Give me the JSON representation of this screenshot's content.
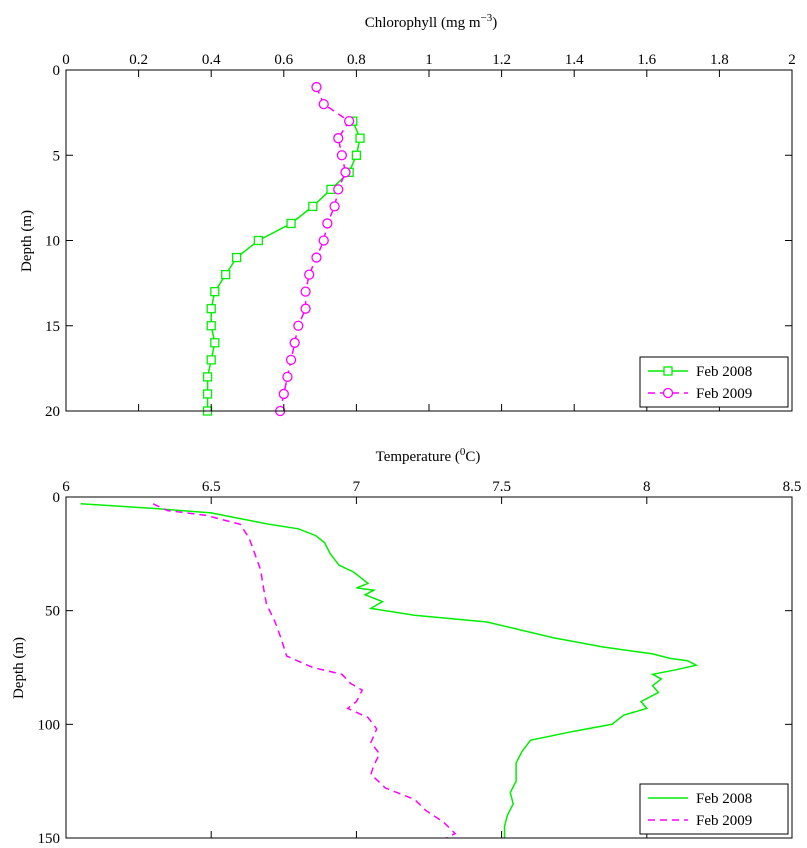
{
  "chart_data": [
    {
      "type": "line",
      "xlabel": "Chlorophyll (mg m",
      "xlabel_sup": "−3",
      "xlabel_end": ")",
      "ylabel": "Depth (m)",
      "xlim": [
        0,
        2
      ],
      "ylim": [
        0,
        20
      ],
      "x_ticks": [
        0,
        0.2,
        0.4,
        0.6,
        0.8,
        1,
        1.2,
        1.4,
        1.6,
        1.8,
        2
      ],
      "x_tick_labels": [
        "0",
        "0.2",
        "0.4",
        "0.6",
        "0.8",
        "1",
        "1.2",
        "1.4",
        "1.6",
        "1.8",
        "2"
      ],
      "y_ticks": [
        0,
        5,
        10,
        15,
        20
      ],
      "y_tick_labels": [
        "0",
        "5",
        "10",
        "15",
        "20"
      ],
      "y_reversed": true,
      "x_axis_position": "top",
      "grid": false,
      "legend_position": "bottom-right",
      "series": [
        {
          "name": "Feb 2008",
          "color": "#00ee00",
          "dash": "solid",
          "marker": "square",
          "points": [
            [
              0.79,
              3
            ],
            [
              0.81,
              4
            ],
            [
              0.8,
              5
            ],
            [
              0.78,
              6
            ],
            [
              0.73,
              7
            ],
            [
              0.68,
              8
            ],
            [
              0.62,
              9
            ],
            [
              0.53,
              10
            ],
            [
              0.47,
              11
            ],
            [
              0.44,
              12
            ],
            [
              0.41,
              13
            ],
            [
              0.4,
              14
            ],
            [
              0.4,
              15
            ],
            [
              0.41,
              16
            ],
            [
              0.4,
              17
            ],
            [
              0.39,
              18
            ],
            [
              0.39,
              19
            ],
            [
              0.39,
              20
            ]
          ]
        },
        {
          "name": "Feb 2009",
          "color": "#ff00ff",
          "dash": "dashed",
          "marker": "circle",
          "points": [
            [
              0.69,
              1
            ],
            [
              0.71,
              2
            ],
            [
              0.78,
              3
            ],
            [
              0.75,
              4
            ],
            [
              0.76,
              5
            ],
            [
              0.77,
              6
            ],
            [
              0.75,
              7
            ],
            [
              0.74,
              8
            ],
            [
              0.72,
              9
            ],
            [
              0.71,
              10
            ],
            [
              0.69,
              11
            ],
            [
              0.67,
              12
            ],
            [
              0.66,
              13
            ],
            [
              0.66,
              14
            ],
            [
              0.64,
              15
            ],
            [
              0.63,
              16
            ],
            [
              0.62,
              17
            ],
            [
              0.61,
              18
            ],
            [
              0.6,
              19
            ],
            [
              0.59,
              20
            ]
          ]
        }
      ]
    },
    {
      "type": "line",
      "xlabel": "Temperature (",
      "xlabel_sup": "0",
      "xlabel_end": "C)",
      "ylabel": "Depth (m)",
      "xlim": [
        6,
        8.5
      ],
      "ylim": [
        0,
        150
      ],
      "x_ticks": [
        6,
        6.5,
        7,
        7.5,
        8,
        8.5
      ],
      "x_tick_labels": [
        "6",
        "6.5",
        "7",
        "7.5",
        "8",
        "8.5"
      ],
      "y_ticks": [
        0,
        50,
        100,
        150
      ],
      "y_tick_labels": [
        "0",
        "50",
        "100",
        "150"
      ],
      "y_reversed": true,
      "x_axis_position": "top",
      "grid": false,
      "legend_position": "bottom-right",
      "series": [
        {
          "name": "Feb 2008",
          "color": "#00ee00",
          "dash": "solid",
          "marker": "none",
          "points": [
            [
              6.05,
              3
            ],
            [
              6.3,
              5
            ],
            [
              6.5,
              7
            ],
            [
              6.58,
              9
            ],
            [
              6.7,
              12
            ],
            [
              6.8,
              14
            ],
            [
              6.86,
              17
            ],
            [
              6.89,
              20
            ],
            [
              6.91,
              25
            ],
            [
              6.94,
              30
            ],
            [
              6.99,
              33
            ],
            [
              7.02,
              36
            ],
            [
              7.04,
              38
            ],
            [
              7.0,
              40
            ],
            [
              7.06,
              41
            ],
            [
              7.03,
              43
            ],
            [
              7.09,
              46
            ],
            [
              7.05,
              49
            ],
            [
              7.2,
              52
            ],
            [
              7.45,
              55
            ],
            [
              7.55,
              58
            ],
            [
              7.68,
              62
            ],
            [
              7.85,
              66
            ],
            [
              8.02,
              69
            ],
            [
              8.08,
              71
            ],
            [
              8.14,
              72
            ],
            [
              8.17,
              74
            ],
            [
              8.1,
              76
            ],
            [
              8.02,
              78
            ],
            [
              8.05,
              80
            ],
            [
              8.02,
              83
            ],
            [
              8.04,
              86
            ],
            [
              7.98,
              90
            ],
            [
              8.0,
              93
            ],
            [
              7.92,
              96
            ],
            [
              7.88,
              100
            ],
            [
              7.75,
              103
            ],
            [
              7.6,
              107
            ],
            [
              7.57,
              112
            ],
            [
              7.55,
              117
            ],
            [
              7.55,
              125
            ],
            [
              7.53,
              130
            ],
            [
              7.54,
              135
            ],
            [
              7.52,
              140
            ],
            [
              7.51,
              145
            ],
            [
              7.51,
              150
            ]
          ]
        },
        {
          "name": "Feb 2009",
          "color": "#ff00ff",
          "dash": "dashed",
          "marker": "none",
          "points": [
            [
              6.3,
              3
            ],
            [
              6.35,
              6
            ],
            [
              6.48,
              8
            ],
            [
              6.6,
              12
            ],
            [
              6.63,
              18
            ],
            [
              6.65,
              25
            ],
            [
              6.67,
              32
            ],
            [
              6.68,
              40
            ],
            [
              6.69,
              47
            ],
            [
              6.72,
              55
            ],
            [
              6.74,
              62
            ],
            [
              6.76,
              70
            ],
            [
              6.85,
              75
            ],
            [
              6.95,
              78
            ],
            [
              6.98,
              82
            ],
            [
              7.02,
              85
            ],
            [
              7.0,
              90
            ],
            [
              6.97,
              93
            ],
            [
              7.04,
              97
            ],
            [
              7.07,
              102
            ],
            [
              7.05,
              108
            ],
            [
              7.08,
              113
            ],
            [
              7.06,
              118
            ],
            [
              7.05,
              122
            ],
            [
              7.1,
              128
            ],
            [
              7.2,
              133
            ],
            [
              7.24,
              138
            ],
            [
              7.3,
              143
            ],
            [
              7.34,
              148
            ],
            [
              7.31,
              150
            ]
          ]
        }
      ]
    }
  ]
}
